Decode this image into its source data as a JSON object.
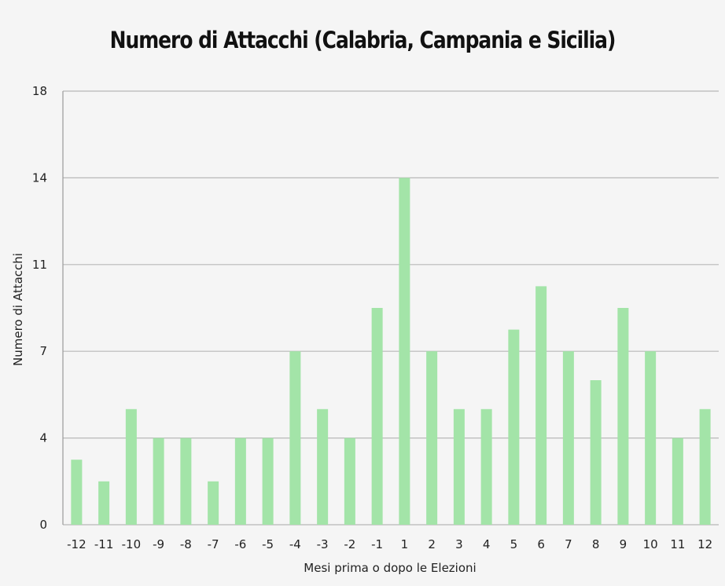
{
  "chart_data": {
    "type": "bar",
    "title": "Numero di Attacchi (Calabria, Campania e Sicilia)",
    "xlabel": "Mesi prima  o dopo le Elezioni",
    "ylabel": "Numero di Attacchi",
    "categories": [
      "-12",
      "-11",
      "-10",
      "-9",
      "-8",
      "-7",
      "-6",
      "-5",
      "-4",
      "-3",
      "-2",
      "-1",
      "1",
      "2",
      "3",
      "4",
      "5",
      "6",
      "7",
      "8",
      "9",
      "10",
      "11",
      "12"
    ],
    "values": [
      3,
      2,
      5,
      4,
      4,
      2,
      4,
      4,
      7,
      5,
      4,
      9,
      14,
      7,
      5,
      5,
      8,
      10,
      7,
      6,
      9,
      7,
      4,
      5
    ],
    "yticks": [
      0,
      4,
      7,
      11,
      14,
      18
    ],
    "ylim": [
      0,
      14
    ],
    "grid": true,
    "legend": "none",
    "colors": {
      "bar": "#a3e4a8",
      "grid": "#b8b8b8",
      "background": "#f5f5f5"
    }
  }
}
